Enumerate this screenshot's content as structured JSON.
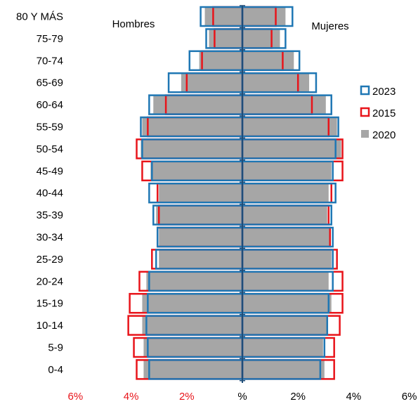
{
  "chart_data": {
    "type": "bar",
    "orientation": "horizontal-pyramid",
    "categories": [
      "80 Y MÁS",
      "75-79",
      "70-74",
      "65-69",
      "60-64",
      "55-59",
      "50-54",
      "45-49",
      "40-44",
      "35-39",
      "30-34",
      "25-29",
      "20-24",
      "15-19",
      "10-14",
      "5-9",
      "0-4"
    ],
    "left_label": "Hombres",
    "right_label": "Mujeres",
    "xlim": [
      -6,
      6
    ],
    "x_ticks": [
      {
        "value": -6,
        "label": "6%"
      },
      {
        "value": -4,
        "label": "4%"
      },
      {
        "value": -2,
        "label": "2%"
      },
      {
        "value": 0,
        "label": "%"
      },
      {
        "value": 2,
        "label": "2%"
      },
      {
        "value": 4,
        "label": "4%"
      },
      {
        "value": 6,
        "label": "6%"
      }
    ],
    "legend_position": "right",
    "series": [
      {
        "name": "2023",
        "style": "outline",
        "color": "#1F77B4",
        "men": [
          1.5,
          1.3,
          1.9,
          2.65,
          3.35,
          3.65,
          3.6,
          3.25,
          3.35,
          3.2,
          3.05,
          3.1,
          3.35,
          3.4,
          3.45,
          3.4,
          3.35
        ],
        "women": [
          1.8,
          1.55,
          2.05,
          2.65,
          3.2,
          3.45,
          3.35,
          3.25,
          3.35,
          3.2,
          3.25,
          3.25,
          3.25,
          3.1,
          3.05,
          2.95,
          2.8
        ]
      },
      {
        "name": "2015",
        "style": "outline",
        "color": "#E8141A",
        "men": [
          1.05,
          1.0,
          1.45,
          2.0,
          2.75,
          3.4,
          3.8,
          3.6,
          3.05,
          3.0,
          3.05,
          3.25,
          3.7,
          4.05,
          4.1,
          3.9,
          3.8
        ],
        "women": [
          1.2,
          1.05,
          1.45,
          2.0,
          2.5,
          3.1,
          3.6,
          3.6,
          3.2,
          3.1,
          3.15,
          3.4,
          3.6,
          3.6,
          3.5,
          3.3,
          3.3
        ]
      },
      {
        "name": "2020",
        "style": "filled",
        "color": "#A6A6A6",
        "men": [
          1.35,
          1.2,
          1.55,
          2.2,
          3.2,
          3.6,
          3.65,
          3.3,
          3.0,
          3.1,
          3.0,
          3.0,
          3.45,
          3.6,
          3.6,
          3.55,
          3.55
        ],
        "women": [
          1.55,
          1.35,
          1.85,
          2.4,
          3.0,
          3.4,
          3.55,
          3.2,
          3.1,
          3.05,
          3.15,
          3.2,
          3.1,
          3.2,
          3.05,
          2.9,
          2.95
        ]
      }
    ],
    "colors": {
      "axis": "#1F4E79",
      "tick_negative": "#E8141A",
      "tick_zero": "#000000"
    }
  }
}
